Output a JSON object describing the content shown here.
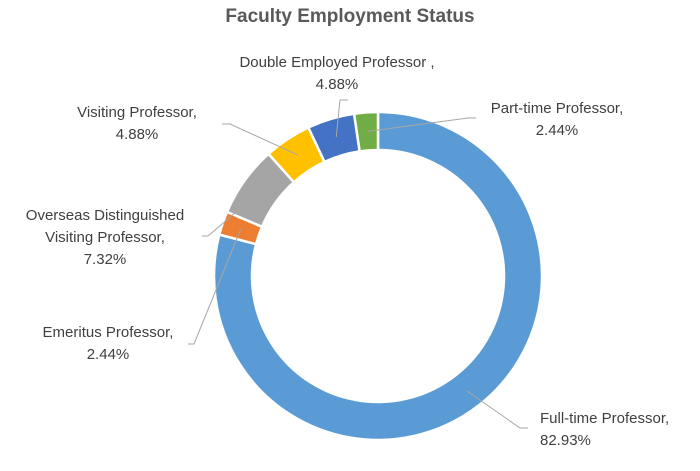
{
  "chart_data": {
    "type": "pie",
    "variant": "donut",
    "title": "Faculty Employment Status",
    "slices": [
      {
        "label": "Full-time Professor,",
        "value": 82.93,
        "display": "82.93%",
        "color": "#5B9BD5"
      },
      {
        "label": "Emeritus Professor,",
        "value": 2.44,
        "display": "2.44%",
        "color": "#ED7D31"
      },
      {
        "label": "Overseas Distinguished Visiting Professor,",
        "value": 7.32,
        "display": "7.32%",
        "color": "#A5A5A5"
      },
      {
        "label": "Visiting Professor,",
        "value": 4.88,
        "display": "4.88%",
        "color": "#FFC000"
      },
      {
        "label": "Double Employed Professor ,",
        "value": 4.88,
        "display": "4.88%",
        "color": "#4472C4"
      },
      {
        "label": "Part-time Professor,",
        "value": 2.44,
        "display": "2.44%",
        "color": "#70AD47"
      }
    ],
    "label_lines": {
      "overseas": [
        "Overseas Distinguished",
        "Visiting Professor,"
      ]
    },
    "legend": "none"
  }
}
